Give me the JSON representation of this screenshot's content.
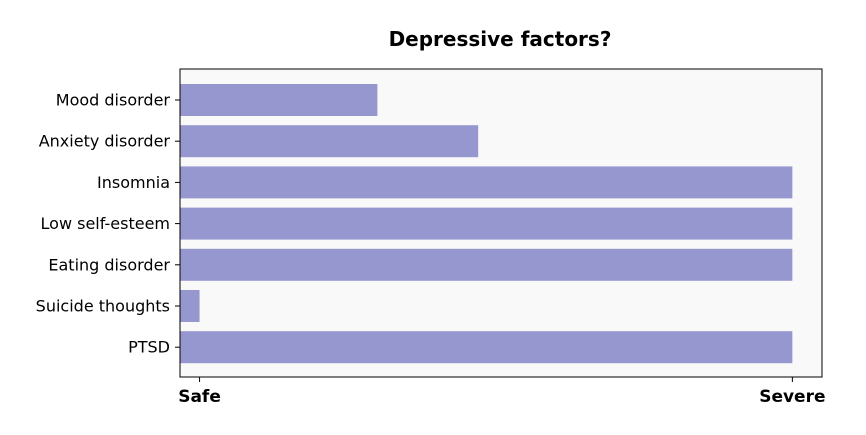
{
  "chart_data": {
    "type": "bar",
    "orientation": "horizontal",
    "title": "Depressive factors?",
    "xlabel": "",
    "ylabel": "",
    "categories": [
      "Mood disorder",
      "Anxiety disorder",
      "Insomnia",
      "Low self-esteem",
      "Eating disorder",
      "Suicide thoughts",
      "PTSD"
    ],
    "values": [
      0.3,
      0.47,
      1,
      1,
      1,
      0,
      1
    ],
    "xlim": [
      -0.033,
      1.05
    ],
    "x_ticks": [
      {
        "value": 0,
        "label": "Safe"
      },
      {
        "value": 1,
        "label": "Severe"
      }
    ],
    "grid": false,
    "legend": "none",
    "bar_color": "#9797cf",
    "plot_background": "#f9f9f9"
  }
}
